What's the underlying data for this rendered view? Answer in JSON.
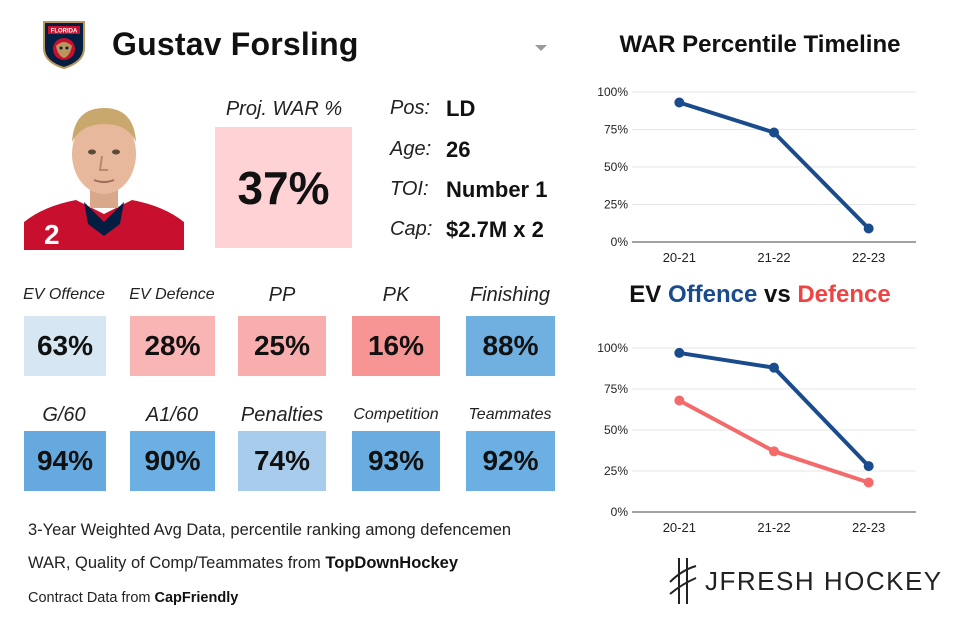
{
  "team": {
    "logo_icon": "florida-panthers-logo-icon",
    "logo_text": "FLORIDA"
  },
  "player": {
    "name": "Gustav Forsling",
    "photo_icon": "player-headshot-image",
    "proj_war_label": "Proj. WAR %",
    "proj_war_value": "37%",
    "proj_war_color": "#ffd3d6",
    "info": [
      {
        "key": "Pos:",
        "value": "LD"
      },
      {
        "key": "Age:",
        "value": "26"
      },
      {
        "key": "TOI:",
        "value": "Number 1"
      },
      {
        "key": "Cap:",
        "value": "$2.7M x 2"
      }
    ]
  },
  "stats_row1": [
    {
      "label": "EV Offence",
      "value": "63%",
      "color": "#d6e6f3"
    },
    {
      "label": "EV Defence",
      "value": "28%",
      "color": "#f9b4b4"
    },
    {
      "label": "PP",
      "value": "25%",
      "color": "#f9aeae"
    },
    {
      "label": "PK",
      "value": "16%",
      "color": "#f79595"
    },
    {
      "label": "Finishing",
      "value": "88%",
      "color": "#6fb0e0"
    }
  ],
  "stats_row2": [
    {
      "label": "G/60",
      "value": "94%",
      "color": "#66a9de"
    },
    {
      "label": "A1/60",
      "value": "90%",
      "color": "#6cafe2"
    },
    {
      "label": "Penalties",
      "value": "74%",
      "color": "#a8cdec"
    },
    {
      "label": "Competition",
      "value": "93%",
      "color": "#69acdf"
    },
    {
      "label": "Teammates",
      "value": "92%",
      "color": "#6cafe2"
    }
  ],
  "footer": {
    "line1": "3-Year Weighted Avg Data, percentile ranking among defencemen",
    "line2_prefix": "WAR, Quality of Comp/Teammates from ",
    "line2_source": "TopDownHockey",
    "line3_prefix": "Contract Data from ",
    "line3_source": "CapFriendly"
  },
  "brand": {
    "name": "JFRESH HOCKEY",
    "logo_icon": "jfresh-logo-icon"
  },
  "chart_data": [
    {
      "type": "line",
      "title": "WAR Percentile Timeline",
      "categories": [
        "20-21",
        "21-22",
        "22-23"
      ],
      "series": [
        {
          "name": "WAR",
          "values": [
            93,
            73,
            9
          ],
          "color": "#1a4b8c"
        }
      ],
      "ylim": [
        0,
        100
      ],
      "yticks": [
        "0%",
        "25%",
        "50%",
        "75%",
        "100%"
      ],
      "grid": true
    },
    {
      "type": "line",
      "title_parts": [
        "EV ",
        "Offence",
        " vs ",
        "Defence"
      ],
      "title_colors": [
        "#111111",
        "#1a4b8c",
        "#111111",
        "#f04444"
      ],
      "categories": [
        "20-21",
        "21-22",
        "22-23"
      ],
      "series": [
        {
          "name": "Offence",
          "values": [
            97,
            88,
            28
          ],
          "color": "#1a4b8c"
        },
        {
          "name": "Defence",
          "values": [
            68,
            37,
            18
          ],
          "color": "#f46a6a"
        }
      ],
      "ylim": [
        0,
        100
      ],
      "yticks": [
        "0%",
        "25%",
        "50%",
        "75%",
        "100%"
      ],
      "grid": true
    }
  ]
}
